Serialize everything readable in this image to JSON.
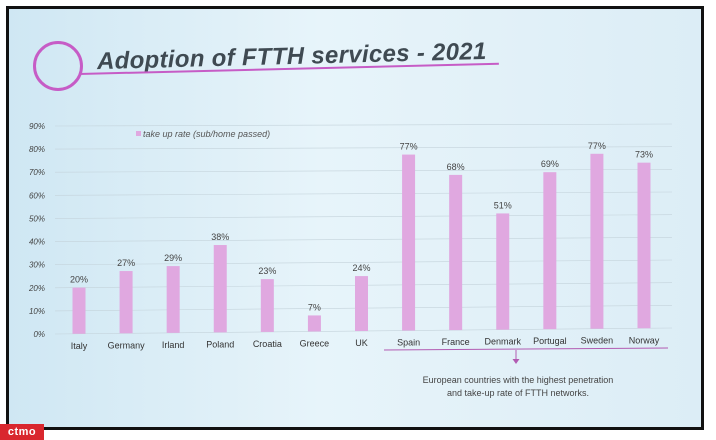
{
  "slide": {
    "title": "Adoption of FTTH services - 2021",
    "watermark": "ctmo"
  },
  "chart_data": {
    "type": "bar",
    "title": "Adoption of FTTH services - 2021",
    "categories": [
      "Italy",
      "Germany",
      "Irland",
      "Poland",
      "Croatia",
      "Greece",
      "UK",
      "Spain",
      "France",
      "Denmark",
      "Portugal",
      "Sweden",
      "Norway"
    ],
    "series": [
      {
        "name": "take up rate (sub/home passed)",
        "values": [
          20,
          27,
          29,
          38,
          23,
          7,
          24,
          77,
          68,
          51,
          69,
          77,
          73
        ],
        "labels": [
          "20%",
          "27%",
          "29%",
          "38%",
          "23%",
          "7%",
          "24%",
          "77%",
          "68%",
          "51%",
          "69%",
          "77%",
          "73%"
        ]
      }
    ],
    "yticks": [
      "0%",
      "10%",
      "20%",
      "30%",
      "40%",
      "50%",
      "60%",
      "70%",
      "80%",
      "90%"
    ],
    "ylim": [
      0,
      90
    ],
    "grid": true,
    "legend": "top-left",
    "bar_color": "#e0a8e0",
    "bracket_note": [
      "European countries with the highest penetration",
      "and take-up rate of FTTH networks."
    ]
  }
}
